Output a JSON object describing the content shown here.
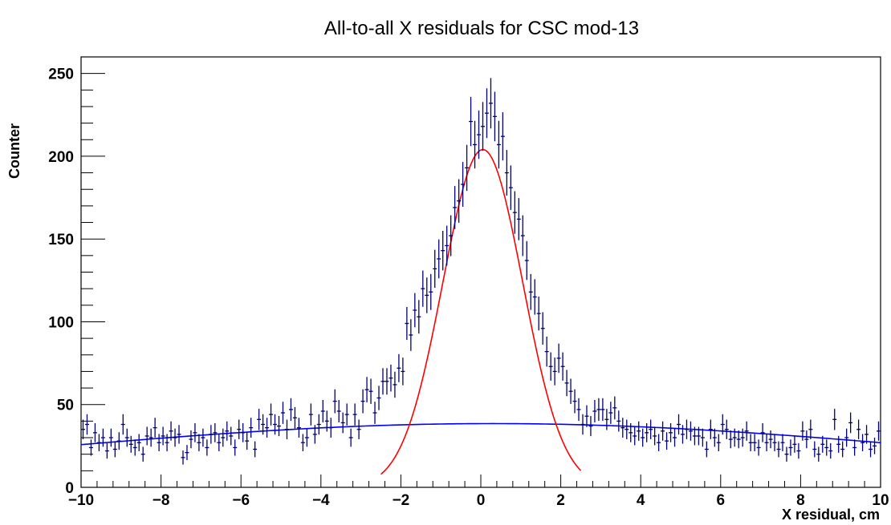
{
  "chart_data": {
    "type": "scatter",
    "title": "All-to-all X residuals for CSC mod-13",
    "xlabel": "X residual, cm",
    "ylabel": "Counter",
    "xlim": [
      -10,
      10
    ],
    "ylim": [
      0,
      260
    ],
    "x_ticks": [
      -10,
      -8,
      -6,
      -4,
      -2,
      0,
      2,
      4,
      6,
      8,
      10
    ],
    "y_ticks": [
      0,
      50,
      100,
      150,
      200,
      250
    ],
    "grid": false,
    "legend": "none",
    "colors": {
      "data": "#00007a",
      "signal_fit": "#ff0000",
      "background_fit": "#0000ff",
      "frame": "#000000"
    },
    "bin_width": 0.1,
    "series": [
      {
        "kind": "histogram-points",
        "x": [
          -9.95,
          -9.85,
          -9.75,
          -9.65,
          -9.55,
          -9.45,
          -9.35,
          -9.25,
          -9.15,
          -9.05,
          -8.95,
          -8.85,
          -8.75,
          -8.65,
          -8.55,
          -8.45,
          -8.35,
          -8.25,
          -8.15,
          -8.05,
          -7.95,
          -7.85,
          -7.75,
          -7.65,
          -7.55,
          -7.45,
          -7.35,
          -7.25,
          -7.15,
          -7.05,
          -6.95,
          -6.85,
          -6.75,
          -6.65,
          -6.55,
          -6.45,
          -6.35,
          -6.25,
          -6.15,
          -6.05,
          -5.95,
          -5.85,
          -5.75,
          -5.65,
          -5.55,
          -5.45,
          -5.35,
          -5.25,
          -5.15,
          -5.05,
          -4.95,
          -4.85,
          -4.75,
          -4.65,
          -4.55,
          -4.45,
          -4.35,
          -4.25,
          -4.15,
          -4.05,
          -3.95,
          -3.85,
          -3.75,
          -3.65,
          -3.55,
          -3.45,
          -3.35,
          -3.25,
          -3.15,
          -3.05,
          -2.95,
          -2.85,
          -2.75,
          -2.65,
          -2.55,
          -2.45,
          -2.35,
          -2.25,
          -2.15,
          -2.05,
          -1.95,
          -1.85,
          -1.75,
          -1.65,
          -1.55,
          -1.45,
          -1.35,
          -1.25,
          -1.15,
          -1.05,
          -0.95,
          -0.85,
          -0.75,
          -0.65,
          -0.55,
          -0.45,
          -0.35,
          -0.25,
          -0.15,
          -0.05,
          0.05,
          0.15,
          0.25,
          0.35,
          0.45,
          0.55,
          0.65,
          0.75,
          0.85,
          0.95,
          1.05,
          1.15,
          1.25,
          1.35,
          1.45,
          1.55,
          1.65,
          1.75,
          1.85,
          1.95,
          2.05,
          2.15,
          2.25,
          2.35,
          2.45,
          2.55,
          2.65,
          2.75,
          2.85,
          2.95,
          3.05,
          3.15,
          3.25,
          3.35,
          3.45,
          3.55,
          3.65,
          3.75,
          3.85,
          3.95,
          4.05,
          4.15,
          4.25,
          4.35,
          4.45,
          4.55,
          4.65,
          4.75,
          4.85,
          4.95,
          5.05,
          5.15,
          5.25,
          5.35,
          5.45,
          5.55,
          5.65,
          5.75,
          5.85,
          5.95,
          6.05,
          6.15,
          6.25,
          6.35,
          6.45,
          6.55,
          6.65,
          6.75,
          6.85,
          6.95,
          7.05,
          7.15,
          7.25,
          7.35,
          7.45,
          7.55,
          7.65,
          7.75,
          7.85,
          7.95,
          8.05,
          8.15,
          8.25,
          8.35,
          8.45,
          8.55,
          8.65,
          8.75,
          8.85,
          8.95,
          9.05,
          9.15,
          9.25,
          9.35,
          9.45,
          9.55,
          9.65,
          9.75,
          9.85,
          9.95
        ],
        "y": [
          35,
          38,
          24,
          33,
          27,
          30,
          22,
          30,
          23,
          28,
          38,
          30,
          26,
          24,
          27,
          20,
          31,
          30,
          36,
          27,
          31,
          27,
          34,
          30,
          32,
          18,
          21,
          29,
          33,
          27,
          30,
          24,
          32,
          33,
          27,
          30,
          34,
          31,
          24,
          35,
          33,
          28,
          36,
          23,
          41,
          38,
          36,
          44,
          38,
          37,
          45,
          35,
          47,
          42,
          36,
          27,
          30,
          44,
          32,
          38,
          46,
          40,
          36,
          52,
          46,
          39,
          44,
          30,
          44,
          35,
          52,
          59,
          58,
          45,
          54,
          64,
          64,
          66,
          62,
          72,
          70,
          99,
          92,
          107,
          103,
          120,
          116,
          118,
          132,
          138,
          143,
          146,
          152,
          169,
          173,
          183,
          193,
          221,
          207,
          213,
          218,
          226,
          232,
          224,
          207,
          212,
          190,
          181,
          166,
          162,
          152,
          137,
          118,
          115,
          105,
          96,
          82,
          73,
          70,
          78,
          73,
          63,
          58,
          52,
          47,
          38,
          43,
          37,
          46,
          47,
          47,
          41,
          45,
          48,
          40,
          36,
          35,
          33,
          31,
          34,
          30,
          33,
          35,
          31,
          27,
          34,
          28,
          33,
          30,
          38,
          32,
          35,
          34,
          31,
          31,
          30,
          23,
          35,
          30,
          27,
          38,
          35,
          29,
          30,
          29,
          30,
          34,
          27,
          27,
          24,
          33,
          27,
          29,
          27,
          23,
          27,
          20,
          24,
          26,
          22,
          34,
          29,
          35,
          23,
          20,
          26,
          24,
          22,
          41,
          26,
          23,
          30,
          39,
          24,
          35,
          27,
          32,
          23,
          25,
          34
        ]
      },
      {
        "kind": "fit",
        "name": "",
        "function": "gaussian",
        "amplitude": 204,
        "mean": 0.05,
        "sigma": 1.0,
        "range": [
          -2.5,
          2.5
        ]
      },
      {
        "kind": "fit",
        "name": "",
        "function": "gaussian",
        "amplitude": 38.5,
        "mean": 0.3,
        "sigma": 11.5,
        "range": [
          -10,
          10
        ]
      }
    ]
  }
}
